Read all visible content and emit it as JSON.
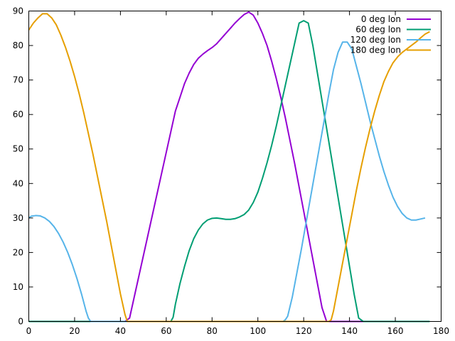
{
  "chart_data": {
    "type": "line",
    "xlim": [
      0,
      180
    ],
    "ylim": [
      0,
      90
    ],
    "xticks": [
      0,
      20,
      40,
      60,
      80,
      100,
      120,
      140,
      160,
      180
    ],
    "yticks": [
      0,
      10,
      20,
      30,
      40,
      50,
      60,
      70,
      80,
      90
    ],
    "grid": false,
    "legend_position": "top-right",
    "series": [
      {
        "name": "0 deg lon",
        "color": "#9400d3",
        "points": [
          [
            0,
            0
          ],
          [
            20,
            0
          ],
          [
            40,
            0
          ],
          [
            42,
            0
          ],
          [
            44,
            1
          ],
          [
            46,
            7
          ],
          [
            48,
            13
          ],
          [
            50,
            19
          ],
          [
            52,
            25
          ],
          [
            54,
            31
          ],
          [
            56,
            37
          ],
          [
            58,
            43
          ],
          [
            60,
            49
          ],
          [
            62,
            55
          ],
          [
            64,
            61
          ],
          [
            66,
            65
          ],
          [
            68,
            69
          ],
          [
            70,
            72
          ],
          [
            72,
            74.5
          ],
          [
            74,
            76.3
          ],
          [
            76,
            77.5
          ],
          [
            78,
            78.5
          ],
          [
            80,
            79.4
          ],
          [
            82,
            80.5
          ],
          [
            84,
            82
          ],
          [
            86,
            83.5
          ],
          [
            88,
            85
          ],
          [
            90,
            86.5
          ],
          [
            92,
            87.8
          ],
          [
            94,
            89
          ],
          [
            96,
            89.7
          ],
          [
            98,
            88.8
          ],
          [
            100,
            86.5
          ],
          [
            102,
            83.5
          ],
          [
            104,
            80
          ],
          [
            106,
            75.5
          ],
          [
            108,
            70.5
          ],
          [
            110,
            65
          ],
          [
            112,
            59
          ],
          [
            114,
            52.5
          ],
          [
            116,
            46
          ],
          [
            118,
            39
          ],
          [
            120,
            32
          ],
          [
            122,
            25
          ],
          [
            124,
            18
          ],
          [
            126,
            11
          ],
          [
            128,
            4
          ],
          [
            130,
            0
          ],
          [
            132,
            0
          ],
          [
            140,
            0
          ],
          [
            150,
            0
          ]
        ]
      },
      {
        "name": "60 deg lon",
        "color": "#009e73",
        "points": [
          [
            0,
            0
          ],
          [
            20,
            0
          ],
          [
            40,
            0
          ],
          [
            60,
            0
          ],
          [
            62,
            0
          ],
          [
            63,
            1.2
          ],
          [
            64,
            5
          ],
          [
            66,
            11
          ],
          [
            68,
            16
          ],
          [
            70,
            20.5
          ],
          [
            72,
            24
          ],
          [
            74,
            26.5
          ],
          [
            76,
            28.3
          ],
          [
            78,
            29.4
          ],
          [
            80,
            29.9
          ],
          [
            82,
            30
          ],
          [
            84,
            29.8
          ],
          [
            86,
            29.6
          ],
          [
            88,
            29.6
          ],
          [
            90,
            29.8
          ],
          [
            92,
            30.3
          ],
          [
            94,
            31
          ],
          [
            96,
            32.3
          ],
          [
            98,
            34.5
          ],
          [
            100,
            37.5
          ],
          [
            102,
            41.5
          ],
          [
            104,
            46
          ],
          [
            106,
            51
          ],
          [
            108,
            56.5
          ],
          [
            110,
            62.5
          ],
          [
            112,
            68.5
          ],
          [
            114,
            74.5
          ],
          [
            116,
            80.5
          ],
          [
            118,
            86.5
          ],
          [
            120,
            87.2
          ],
          [
            122,
            86.5
          ],
          [
            124,
            80
          ],
          [
            126,
            72
          ],
          [
            128,
            64
          ],
          [
            130,
            56
          ],
          [
            132,
            48
          ],
          [
            134,
            40
          ],
          [
            136,
            32
          ],
          [
            138,
            24
          ],
          [
            140,
            16
          ],
          [
            142,
            8
          ],
          [
            144,
            1
          ],
          [
            146,
            0
          ],
          [
            150,
            0
          ],
          [
            160,
            0
          ],
          [
            175,
            0
          ]
        ]
      },
      {
        "name": "120 deg lon",
        "color": "#56b4e9",
        "points": [
          [
            0,
            30
          ],
          [
            1,
            30.5
          ],
          [
            3,
            30.7
          ],
          [
            5,
            30.6
          ],
          [
            7,
            30
          ],
          [
            9,
            29
          ],
          [
            11,
            27.5
          ],
          [
            13,
            25.5
          ],
          [
            15,
            23
          ],
          [
            17,
            20
          ],
          [
            19,
            16.5
          ],
          [
            21,
            12.5
          ],
          [
            23,
            8
          ],
          [
            25,
            3
          ],
          [
            26,
            1
          ],
          [
            27,
            0
          ],
          [
            40,
            0
          ],
          [
            60,
            0
          ],
          [
            80,
            0
          ],
          [
            100,
            0
          ],
          [
            111,
            0
          ],
          [
            112,
            0.5
          ],
          [
            113,
            1.5
          ],
          [
            115,
            7
          ],
          [
            117,
            14
          ],
          [
            119,
            21
          ],
          [
            121,
            28.5
          ],
          [
            123,
            36
          ],
          [
            125,
            43.5
          ],
          [
            127,
            51
          ],
          [
            129,
            58.5
          ],
          [
            131,
            66
          ],
          [
            133,
            73
          ],
          [
            135,
            78
          ],
          [
            137,
            81
          ],
          [
            139,
            81
          ],
          [
            141,
            79
          ],
          [
            143,
            74
          ],
          [
            145,
            69
          ],
          [
            147,
            63.5
          ],
          [
            149,
            58
          ],
          [
            151,
            53
          ],
          [
            153,
            48
          ],
          [
            155,
            43.5
          ],
          [
            157,
            39.5
          ],
          [
            159,
            36
          ],
          [
            161,
            33.3
          ],
          [
            163,
            31.3
          ],
          [
            165,
            30
          ],
          [
            167,
            29.4
          ],
          [
            169,
            29.4
          ],
          [
            171,
            29.7
          ],
          [
            173,
            30
          ]
        ]
      },
      {
        "name": "180 deg lon",
        "color": "#e69f00",
        "points": [
          [
            0,
            84.5
          ],
          [
            2,
            86.5
          ],
          [
            4,
            88
          ],
          [
            6,
            89.2
          ],
          [
            8,
            89.2
          ],
          [
            10,
            88
          ],
          [
            12,
            86
          ],
          [
            14,
            83
          ],
          [
            16,
            79.5
          ],
          [
            18,
            75.5
          ],
          [
            20,
            71
          ],
          [
            22,
            66
          ],
          [
            24,
            60.5
          ],
          [
            26,
            54.5
          ],
          [
            28,
            48.5
          ],
          [
            30,
            42
          ],
          [
            32,
            35.5
          ],
          [
            34,
            29
          ],
          [
            36,
            22
          ],
          [
            38,
            15
          ],
          [
            40,
            8
          ],
          [
            42,
            2
          ],
          [
            43,
            0
          ],
          [
            50,
            0
          ],
          [
            70,
            0
          ],
          [
            90,
            0
          ],
          [
            110,
            0
          ],
          [
            130,
            0
          ],
          [
            131,
            0
          ],
          [
            132,
            0.5
          ],
          [
            133,
            3
          ],
          [
            135,
            10
          ],
          [
            137,
            17
          ],
          [
            139,
            24
          ],
          [
            141,
            31
          ],
          [
            143,
            38
          ],
          [
            145,
            44.5
          ],
          [
            147,
            50.5
          ],
          [
            149,
            56
          ],
          [
            151,
            61
          ],
          [
            153,
            65.5
          ],
          [
            155,
            69.5
          ],
          [
            157,
            72.5
          ],
          [
            159,
            75
          ],
          [
            161,
            76.7
          ],
          [
            163,
            78
          ],
          [
            165,
            79
          ],
          [
            167,
            80
          ],
          [
            169,
            81
          ],
          [
            171,
            82.2
          ],
          [
            173,
            83.3
          ],
          [
            175,
            84
          ]
        ]
      }
    ]
  }
}
